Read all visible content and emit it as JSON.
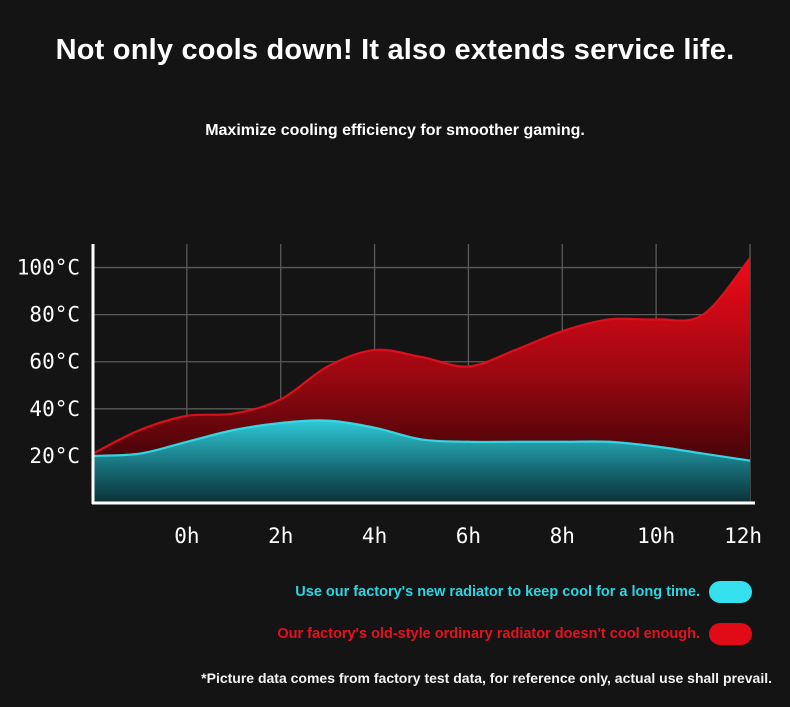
{
  "header": {
    "title": "Not only cools down! It also extends service life.",
    "subtitle": "Maximize cooling efficiency for smoother gaming."
  },
  "chart_data": {
    "type": "area",
    "title": "",
    "xlabel": "",
    "ylabel": "",
    "categories": [
      "0h",
      "2h",
      "4h",
      "6h",
      "8h",
      "10h",
      "12h"
    ],
    "y_ticks": [
      "20°C",
      "40°C",
      "60°C",
      "80°C",
      "100°C"
    ],
    "ylim": [
      0,
      110
    ],
    "xlim": [
      -2,
      12
    ],
    "grid": true,
    "series": [
      {
        "name": "Our factory's old-style ordinary radiator doesn't cool enough.",
        "color": "#e8101e",
        "x": [
          -2,
          -1,
          0,
          1,
          2,
          3,
          4,
          5,
          6,
          7,
          8,
          9,
          10,
          11,
          12
        ],
        "values": [
          21,
          31,
          37,
          38,
          44,
          58,
          65,
          62,
          58,
          65,
          73,
          78,
          78,
          80,
          104
        ]
      },
      {
        "name": "Use our factory's new radiator to keep cool for a long time.",
        "color": "#35e1ee",
        "x": [
          -2,
          -1,
          0,
          1,
          2,
          3,
          4,
          5,
          6,
          7,
          8,
          9,
          10,
          11,
          12
        ],
        "values": [
          20,
          21,
          26,
          31,
          34,
          35,
          32,
          27,
          26,
          26,
          26,
          26,
          24,
          21,
          18
        ]
      }
    ]
  },
  "legend": {
    "new_label": "Use our factory's new radiator to keep cool for a long time.",
    "old_label": "Our factory's old-style ordinary radiator doesn't cool enough."
  },
  "footnote": "*Picture data comes from factory test data, for reference only, actual use shall prevail."
}
